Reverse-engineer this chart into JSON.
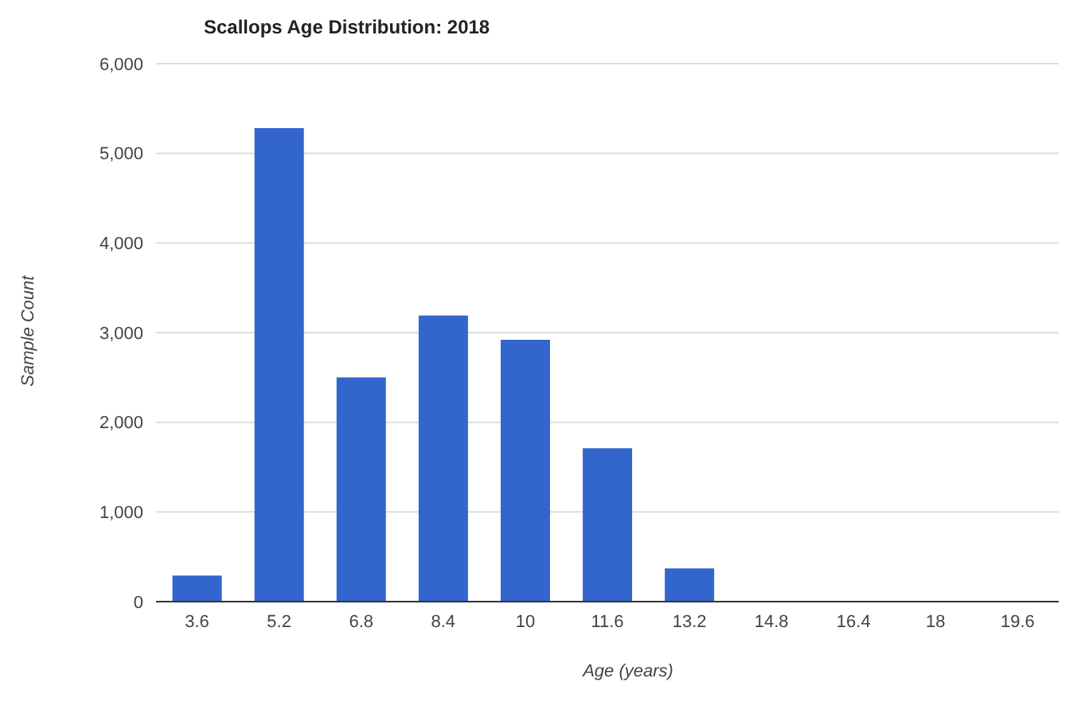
{
  "chart_data": {
    "type": "bar",
    "title": "Scallops Age Distribution: 2018",
    "xlabel": "Age (years)",
    "ylabel": "Sample Count",
    "categories": [
      "3.6",
      "5.2",
      "6.8",
      "8.4",
      "10",
      "11.6",
      "13.2",
      "14.8",
      "16.4",
      "18",
      "19.6"
    ],
    "values": [
      290,
      5280,
      2500,
      3190,
      2920,
      1710,
      370,
      0,
      0,
      0,
      0
    ],
    "color": "#3366cc",
    "ylim": [
      0,
      6000
    ],
    "yticks": [
      {
        "value": 0,
        "label": "0"
      },
      {
        "value": 1000,
        "label": "1,000"
      },
      {
        "value": 2000,
        "label": "2,000"
      },
      {
        "value": 3000,
        "label": "3,000"
      },
      {
        "value": 4000,
        "label": "4,000"
      },
      {
        "value": 5000,
        "label": "5,000"
      },
      {
        "value": 6000,
        "label": "6,000"
      }
    ],
    "grid": "y",
    "legend": false
  }
}
